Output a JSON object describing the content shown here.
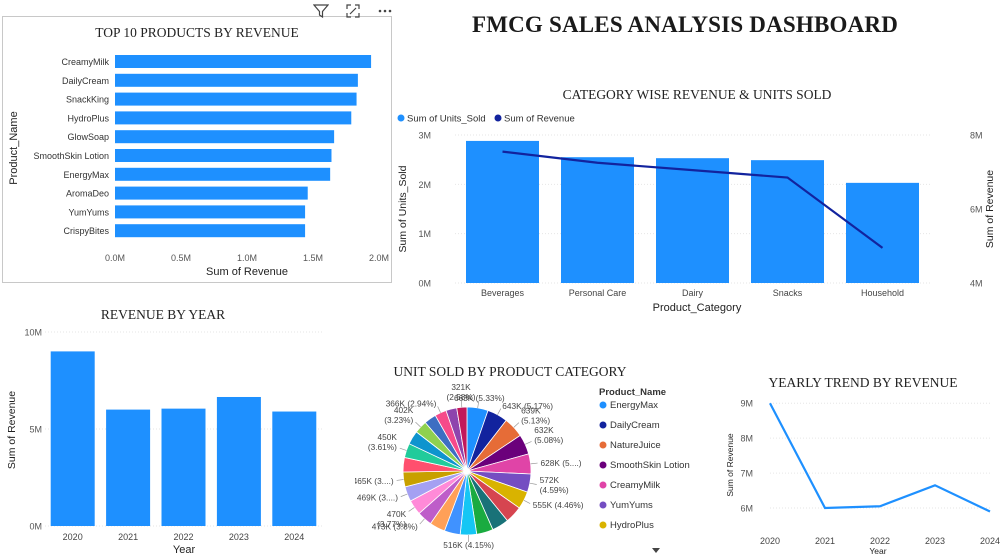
{
  "dashboard": {
    "title": "FMCG SALES ANALYSIS DASHBOARD"
  },
  "toolbar": {
    "icons": [
      "filter-icon",
      "focus-mode-icon",
      "more-options-icon"
    ]
  },
  "colors": {
    "bar": "#1E90FF",
    "line": "#12239E",
    "grid": "#e6e6e6"
  },
  "chart_data": [
    {
      "id": "top10",
      "type": "bar",
      "orientation": "horizontal",
      "title": "TOP 10 PRODUCTS BY REVENUE",
      "xlabel": "Sum of Revenue",
      "ylabel": "Product_Name",
      "xlim": [
        0,
        2000000
      ],
      "xticks": [
        0,
        500000,
        1000000,
        1500000,
        2000000
      ],
      "xtick_labels": [
        "0.0M",
        "0.5M",
        "1.0M",
        "1.5M",
        "2.0M"
      ],
      "categories": [
        "CreamyMilk",
        "DailyCream",
        "SnackKing",
        "HydroPlus",
        "GlowSoap",
        "SmoothSkin Lotion",
        "EnergyMax",
        "AromaDeo",
        "YumYums",
        "CrispyBites"
      ],
      "values": [
        1940000,
        1840000,
        1830000,
        1790000,
        1660000,
        1640000,
        1630000,
        1460000,
        1440000,
        1440000
      ]
    },
    {
      "id": "category",
      "type": "bar",
      "title": "CATEGORY WISE REVENUE & UNITS SOLD",
      "xlabel": "Product_Category",
      "ylabel": "Sum of Units_Sold",
      "y2label": "Sum of Revenue",
      "legend": [
        {
          "name": "Sum of Units_Sold",
          "color": "#1E90FF"
        },
        {
          "name": "Sum of Revenue",
          "color": "#12239E"
        }
      ],
      "legend_position": "top-left",
      "categories": [
        "Beverages",
        "Personal Care",
        "Dairy",
        "Snacks",
        "Household"
      ],
      "series": [
        {
          "name": "Sum of Units_Sold",
          "type": "bar",
          "axis": "left",
          "values": [
            2880000,
            2550000,
            2530000,
            2490000,
            2030000
          ]
        },
        {
          "name": "Sum of Revenue",
          "type": "line",
          "axis": "right",
          "values": [
            7550000,
            7250000,
            7050000,
            6850000,
            4950000
          ]
        }
      ],
      "ylim": [
        0,
        3000000
      ],
      "yticks": [
        0,
        1000000,
        2000000,
        3000000
      ],
      "ytick_labels": [
        "0M",
        "1M",
        "2M",
        "3M"
      ],
      "y2lim": [
        4000000,
        8000000
      ],
      "y2ticks": [
        4000000,
        6000000,
        8000000
      ],
      "y2tick_labels": [
        "4M",
        "6M",
        "8M"
      ]
    },
    {
      "id": "year",
      "type": "bar",
      "title": "REVENUE BY YEAR",
      "xlabel": "Year",
      "ylabel": "Sum of Revenue",
      "categories": [
        "2020",
        "2021",
        "2022",
        "2023",
        "2024"
      ],
      "values": [
        9000000,
        6000000,
        6050000,
        6650000,
        5900000
      ],
      "ylim": [
        0,
        10000000
      ],
      "yticks": [
        0,
        5000000,
        10000000
      ],
      "ytick_labels": [
        "0M",
        "5M",
        "10M"
      ]
    },
    {
      "id": "pie",
      "type": "pie",
      "title": "UNIT SOLD BY PRODUCT CATEGORY",
      "legend_title": "Product_Name",
      "legend_position": "right",
      "legend": [
        {
          "name": "EnergyMax",
          "color": "#1E90FF"
        },
        {
          "name": "DailyCream",
          "color": "#12239E"
        },
        {
          "name": "NatureJuice",
          "color": "#E66C37"
        },
        {
          "name": "SmoothSkin Lotion",
          "color": "#6B007B"
        },
        {
          "name": "CreamyMilk",
          "color": "#E044A7"
        },
        {
          "name": "YumYums",
          "color": "#744EC2"
        },
        {
          "name": "HydroPlus",
          "color": "#D9B300"
        }
      ],
      "slices": [
        {
          "value": 663,
          "label": [
            "663K (5.33%)"
          ],
          "color": "#1E90FF"
        },
        {
          "value": 643,
          "label": [
            "643K (5.17%)"
          ],
          "color": "#12239E"
        },
        {
          "value": 639,
          "label": [
            "639K",
            "(5.13%)"
          ],
          "color": "#E66C37"
        },
        {
          "value": 632,
          "label": [
            "632K",
            "(5.08%)"
          ],
          "color": "#6B007B"
        },
        {
          "value": 628,
          "label": [
            "628K (5....)"
          ],
          "color": "#E044A7"
        },
        {
          "value": 572,
          "label": [
            "572K",
            "(4.59%)"
          ],
          "color": "#744EC2"
        },
        {
          "value": 555,
          "label": [
            "555K (4.46%)"
          ],
          "color": "#D9B300"
        },
        {
          "value": 540,
          "label": [],
          "color": "#D64550"
        },
        {
          "value": 530,
          "label": [],
          "color": "#197278"
        },
        {
          "value": 520,
          "label": [],
          "color": "#1AAB40"
        },
        {
          "value": 516,
          "label": [
            "516K (4.15%)"
          ],
          "color": "#15C6F4"
        },
        {
          "value": 500,
          "label": [],
          "color": "#4092FF"
        },
        {
          "value": 490,
          "label": [],
          "color": "#FFA058"
        },
        {
          "value": 473,
          "label": [
            "473K (3.8%)"
          ],
          "color": "#BE5DC9"
        },
        {
          "value": 470,
          "label": [
            "470K",
            "(3.77%)"
          ],
          "color": "#FF8AD8"
        },
        {
          "value": 469,
          "label": [
            "469K (3....)"
          ],
          "color": "#A4A0F2"
        },
        {
          "value": 465,
          "label": [
            "465K (3....)"
          ],
          "color": "#C8A000"
        },
        {
          "value": 455,
          "label": [],
          "color": "#FF4F6E"
        },
        {
          "value": 450,
          "label": [
            "450K",
            "(3.61%)"
          ],
          "color": "#21CB9B"
        },
        {
          "value": 430,
          "label": [],
          "color": "#0E94CE"
        },
        {
          "value": 402,
          "label": [
            "402K",
            "(3.23%)"
          ],
          "color": "#8FD14F"
        },
        {
          "value": 380,
          "label": [],
          "color": "#3D6EC2"
        },
        {
          "value": 366,
          "label": [
            "366K (2.94%)"
          ],
          "color": "#F64A8A"
        },
        {
          "value": 340,
          "label": [],
          "color": "#8E44AD"
        },
        {
          "value": 321,
          "label": [
            "321K",
            "(2.58%)"
          ],
          "color": "#C2185B"
        }
      ]
    },
    {
      "id": "trend",
      "type": "line",
      "title": "YEARLY TREND BY REVENUE",
      "xlabel": "Year",
      "ylabel": "Sum of Revenue",
      "x": [
        "2020",
        "2021",
        "2022",
        "2023",
        "2024"
      ],
      "values": [
        9000000,
        6000000,
        6050000,
        6650000,
        5900000
      ],
      "ylim": [
        5800000,
        9150000
      ],
      "yticks": [
        6000000,
        7000000,
        8000000,
        9000000
      ],
      "ytick_labels": [
        "6M",
        "7M",
        "8M",
        "9M"
      ]
    }
  ]
}
